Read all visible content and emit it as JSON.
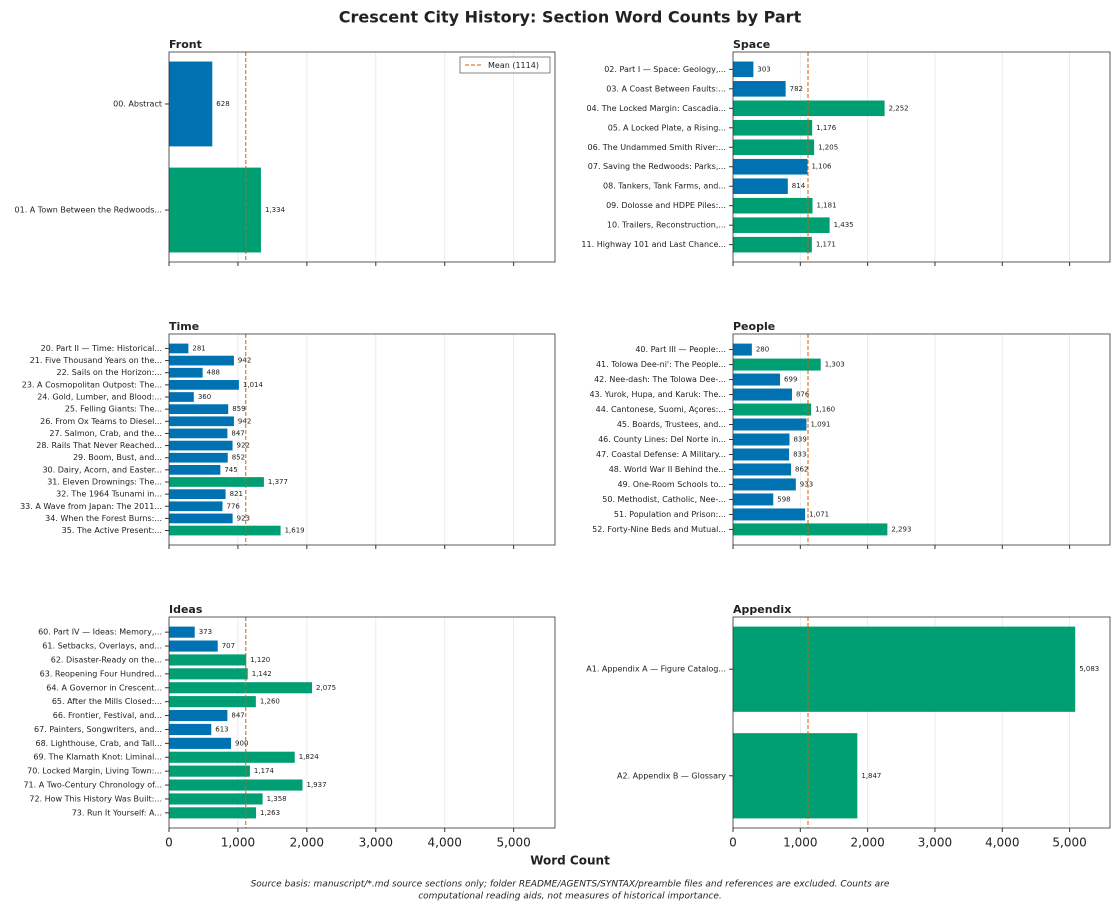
{
  "title": "Crescent City History: Section Word Counts by Part",
  "x_label": "Word Count",
  "footnote": [
    "Source basis: manuscript/*.md source sections only; folder README/AGENTS/SYNTAX/preamble files and references are excluded. Counts are",
    "computational reading aids, not measures of historical importance."
  ],
  "x_axis": {
    "xlim": [
      0,
      5600
    ],
    "xticks": [
      0,
      {
        "value": 1000,
        "label": "1,000"
      },
      {
        "value": 2000,
        "label": "2,000"
      },
      {
        "value": 3000,
        "label": "3,000"
      },
      {
        "value": 4000,
        "label": "4,000"
      },
      {
        "value": 5000,
        "label": "5,000"
      }
    ],
    "grid": true
  },
  "chart_data": [
    {
      "type": "barh",
      "title": "Front",
      "mean": 1114,
      "legend": {
        "label": "Mean (1114)",
        "position": "upper right"
      },
      "categories": [
        "00. Abstract",
        "01. A Town Between the Redwoods..."
      ],
      "values": [
        628,
        1334
      ],
      "value_labels": [
        "628",
        "1,334"
      ],
      "colors": [
        "#0072b2",
        "#009e73"
      ]
    },
    {
      "type": "barh",
      "title": "Space",
      "mean": 1114,
      "categories": [
        "02. Part I — Space: Geology,...",
        "03. A Coast Between Faults:...",
        "04. The Locked Margin: Cascadia...",
        "05. A Locked Plate, a Rising...",
        "06. The Undammed Smith River:...",
        "07. Saving the Redwoods: Parks,...",
        "08. Tankers, Tank Farms, and...",
        "09. Dolosse and HDPE Piles:...",
        "10. Trailers, Reconstruction,...",
        "11. Highway 101 and Last Chance..."
      ],
      "values": [
        303,
        782,
        2252,
        1176,
        1205,
        1106,
        814,
        1181,
        1435,
        1171
      ],
      "value_labels": [
        "303",
        "782",
        "2,252",
        "1,176",
        "1,205",
        "1,106",
        "814",
        "1,181",
        "1,435",
        "1,171"
      ],
      "colors": [
        "#0072b2",
        "#0072b2",
        "#009e73",
        "#009e73",
        "#009e73",
        "#0072b2",
        "#0072b2",
        "#009e73",
        "#009e73",
        "#009e73"
      ]
    },
    {
      "type": "barh",
      "title": "Time",
      "mean": 1114,
      "categories": [
        "20. Part II — Time: Historical...",
        "21. Five Thousand Years on the...",
        "22. Sails on the Horizon:...",
        "23. A Cosmopolitan Outpost: The...",
        "24. Gold, Lumber, and Blood:...",
        "25. Felling Giants: The...",
        "26. From Ox Teams to Diesel...",
        "27. Salmon, Crab, and the...",
        "28. Rails That Never Reached...",
        "29. Boom, Bust, and...",
        "30. Dairy, Acorn, and Easter...",
        "31. Eleven Drownings: The...",
        "32. The 1964 Tsunami in...",
        "33. A Wave from Japan: The 2011...",
        "34. When the Forest Burns:...",
        "35. The Active Present:..."
      ],
      "values": [
        281,
        942,
        488,
        1014,
        360,
        859,
        942,
        847,
        922,
        852,
        745,
        1377,
        821,
        776,
        923,
        1619
      ],
      "value_labels": [
        "281",
        "942",
        "488",
        "1,014",
        "360",
        "859",
        "942",
        "847",
        "922",
        "852",
        "745",
        "1,377",
        "821",
        "776",
        "923",
        "1,619"
      ],
      "colors": [
        "#0072b2",
        "#0072b2",
        "#0072b2",
        "#0072b2",
        "#0072b2",
        "#0072b2",
        "#0072b2",
        "#0072b2",
        "#0072b2",
        "#0072b2",
        "#0072b2",
        "#009e73",
        "#0072b2",
        "#0072b2",
        "#0072b2",
        "#009e73"
      ]
    },
    {
      "type": "barh",
      "title": "People",
      "mean": 1114,
      "categories": [
        "40. Part III — People:...",
        "41. Tolowa Dee-ni': The People...",
        "42. Nee-dash: The Tolowa Dee-...",
        "43. Yurok, Hupa, and Karuk: The...",
        "44. Cantonese, Suomi, Açores:...",
        "45. Boards, Trustees, and...",
        "46. County Lines: Del Norte in...",
        "47. Coastal Defense: A Military...",
        "48. World War II Behind the...",
        "49. One-Room Schools to...",
        "50. Methodist, Catholic, Nee-...",
        "51. Population and Prison:...",
        "52. Forty-Nine Beds and Mutual..."
      ],
      "values": [
        280,
        1303,
        699,
        876,
        1160,
        1091,
        839,
        833,
        862,
        933,
        598,
        1071,
        2293
      ],
      "value_labels": [
        "280",
        "1,303",
        "699",
        "876",
        "1,160",
        "1,091",
        "839",
        "833",
        "862",
        "933",
        "598",
        "1,071",
        "2,293"
      ],
      "colors": [
        "#0072b2",
        "#009e73",
        "#0072b2",
        "#0072b2",
        "#009e73",
        "#0072b2",
        "#0072b2",
        "#0072b2",
        "#0072b2",
        "#0072b2",
        "#0072b2",
        "#0072b2",
        "#009e73"
      ]
    },
    {
      "type": "barh",
      "title": "Ideas",
      "mean": 1114,
      "categories": [
        "60. Part IV — Ideas: Memory,...",
        "61. Setbacks, Overlays, and...",
        "62. Disaster-Ready on the...",
        "63. Reopening Four Hundred...",
        "64. A Governor in Crescent...",
        "65. After the Mills Closed:...",
        "66. Frontier, Festival, and...",
        "67. Painters, Songwriters, and...",
        "68. Lighthouse, Crab, and Tall...",
        "69. The Klamath Knot: Liminal...",
        "70. Locked Margin, Living Town:...",
        "71. A Two-Century Chronology of...",
        "72. How This History Was Built:...",
        "73. Run It Yourself: A..."
      ],
      "values": [
        373,
        707,
        1120,
        1142,
        2075,
        1260,
        847,
        613,
        900,
        1824,
        1174,
        1937,
        1358,
        1263
      ],
      "value_labels": [
        "373",
        "707",
        "1,120",
        "1,142",
        "2,075",
        "1,260",
        "847",
        "613",
        "900",
        "1,824",
        "1,174",
        "1,937",
        "1,358",
        "1,263"
      ],
      "colors": [
        "#0072b2",
        "#0072b2",
        "#009e73",
        "#009e73",
        "#009e73",
        "#009e73",
        "#0072b2",
        "#0072b2",
        "#0072b2",
        "#009e73",
        "#009e73",
        "#009e73",
        "#009e73",
        "#009e73"
      ]
    },
    {
      "type": "barh",
      "title": "Appendix",
      "mean": 1114,
      "categories": [
        "A1. Appendix A — Figure Catalog...",
        "A2. Appendix B — Glossary"
      ],
      "values": [
        5083,
        1847
      ],
      "value_labels": [
        "5,083",
        "1,847"
      ],
      "colors": [
        "#009e73",
        "#009e73"
      ]
    }
  ]
}
